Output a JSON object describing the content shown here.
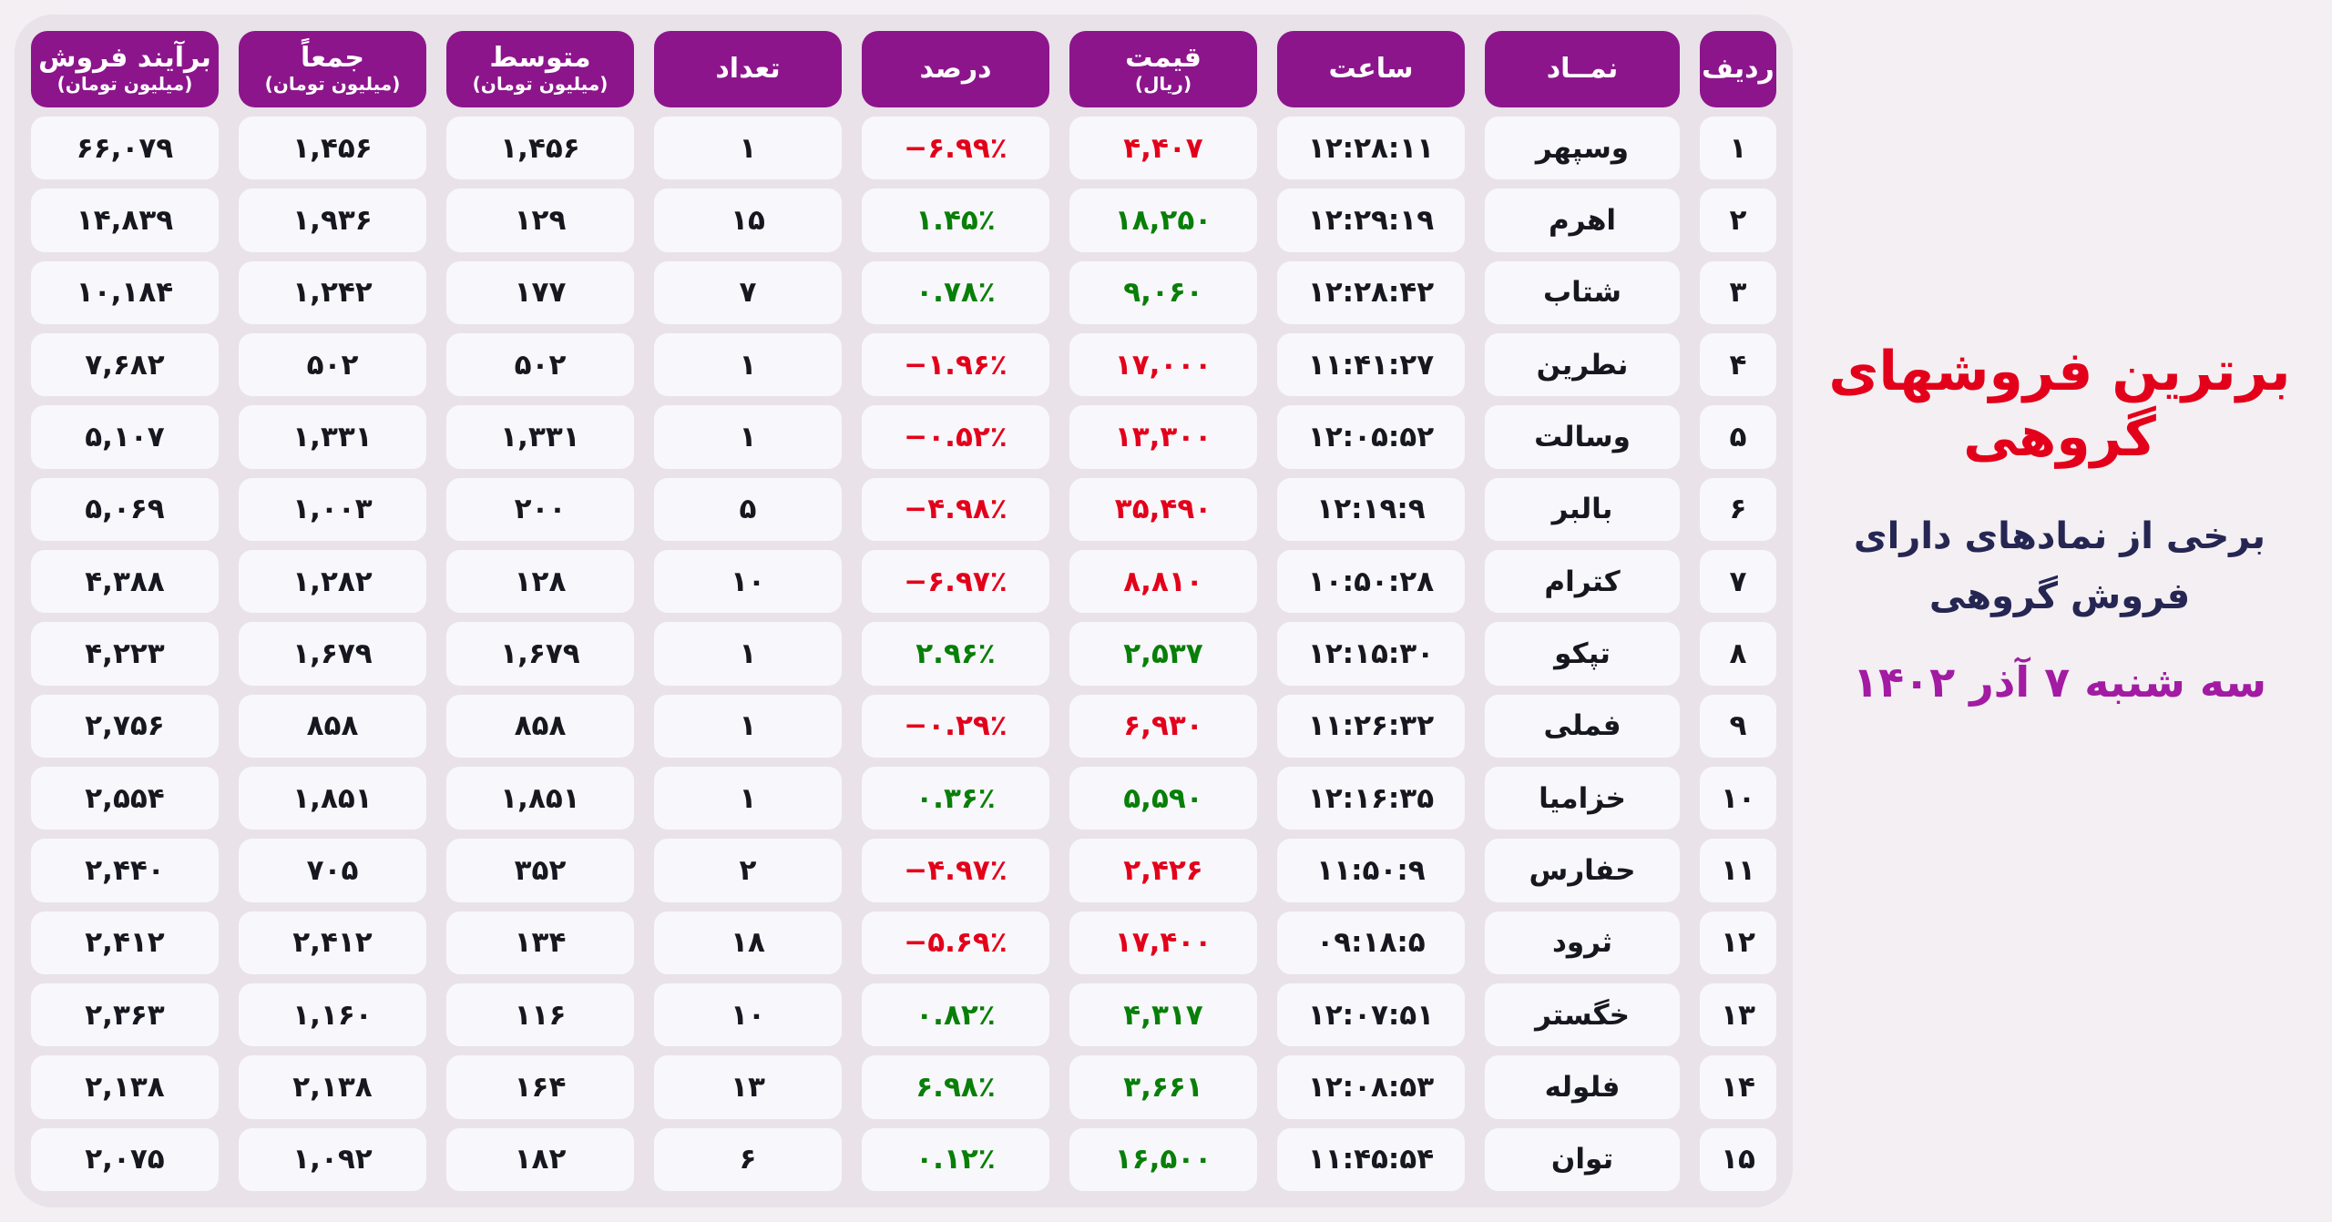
{
  "page": {
    "title": "برترین فروشهای گروهی",
    "subtitle_line1": "برخی از نمادهای دارای",
    "subtitle_line2": "فروش گروهی",
    "date_line": "سه شنبه ۷ آذر ۱۴۰۲"
  },
  "colors": {
    "page_bg": "#f3eff3",
    "board_bg": "#e9e2e9",
    "cell_bg": "#f8f7fc",
    "header_bg": "#8c158c",
    "ink": "#17171f",
    "up_green": "#087f08",
    "down_red": "#e3001a",
    "title_red": "#e3001a",
    "subtitle_navy": "#262653",
    "date_purple": "#a21ba2"
  },
  "table": {
    "headers": {
      "rank": "ردیف",
      "symbol": "نمــاد",
      "time": "ساعت",
      "price": "قیمت",
      "price_unit": "(ریال)",
      "percent": "درصد",
      "count": "تعداد",
      "avg": "متوسط",
      "avg_unit": "(میلیون تومان)",
      "sum": "جمعاً",
      "sum_unit": "(میلیون تومان)",
      "net": "برآیند فروش",
      "net_unit": "(میلیون تومان)"
    },
    "rows": [
      {
        "rank": "۱",
        "symbol": "وسپهر",
        "time": "۱۲:۲۸:۱۱",
        "price": "۴,۴۰۷",
        "percent": "−۶.۹۹٪",
        "trend": "down",
        "count": "۱",
        "avg": "۱,۴۵۶",
        "sum": "۱,۴۵۶",
        "net": "۶۶,۰۷۹"
      },
      {
        "rank": "۲",
        "symbol": "اهرم",
        "time": "۱۲:۲۹:۱۹",
        "price": "۱۸,۲۵۰",
        "percent": "۱.۴۵٪",
        "trend": "up",
        "count": "۱۵",
        "avg": "۱۲۹",
        "sum": "۱,۹۳۶",
        "net": "۱۴,۸۳۹"
      },
      {
        "rank": "۳",
        "symbol": "شتاب",
        "time": "۱۲:۲۸:۴۲",
        "price": "۹,۰۶۰",
        "percent": "۰.۷۸٪",
        "trend": "up",
        "count": "۷",
        "avg": "۱۷۷",
        "sum": "۱,۲۴۲",
        "net": "۱۰,۱۸۴"
      },
      {
        "rank": "۴",
        "symbol": "نطرین",
        "time": "۱۱:۴۱:۲۷",
        "price": "۱۷,۰۰۰",
        "percent": "−۱.۹۶٪",
        "trend": "down",
        "count": "۱",
        "avg": "۵۰۲",
        "sum": "۵۰۲",
        "net": "۷,۶۸۲"
      },
      {
        "rank": "۵",
        "symbol": "وسالت",
        "time": "۱۲:۰۵:۵۲",
        "price": "۱۳,۳۰۰",
        "percent": "−۰.۵۲٪",
        "trend": "down",
        "count": "۱",
        "avg": "۱,۳۳۱",
        "sum": "۱,۳۳۱",
        "net": "۵,۱۰۷"
      },
      {
        "rank": "۶",
        "symbol": "بالبر",
        "time": "۱۲:۱۹:۹",
        "price": "۳۵,۴۹۰",
        "percent": "−۴.۹۸٪",
        "trend": "down",
        "count": "۵",
        "avg": "۲۰۰",
        "sum": "۱,۰۰۳",
        "net": "۵,۰۶۹"
      },
      {
        "rank": "۷",
        "symbol": "کترام",
        "time": "۱۰:۵۰:۲۸",
        "price": "۸,۸۱۰",
        "percent": "−۶.۹۷٪",
        "trend": "down",
        "count": "۱۰",
        "avg": "۱۲۸",
        "sum": "۱,۲۸۲",
        "net": "۴,۳۸۸"
      },
      {
        "rank": "۸",
        "symbol": "تپکو",
        "time": "۱۲:۱۵:۳۰",
        "price": "۲,۵۳۷",
        "percent": "۲.۹۶٪",
        "trend": "up",
        "count": "۱",
        "avg": "۱,۶۷۹",
        "sum": "۱,۶۷۹",
        "net": "۴,۲۲۳"
      },
      {
        "rank": "۹",
        "symbol": "فملی",
        "time": "۱۱:۲۶:۳۲",
        "price": "۶,۹۳۰",
        "percent": "−۰.۲۹٪",
        "trend": "down",
        "count": "۱",
        "avg": "۸۵۸",
        "sum": "۸۵۸",
        "net": "۲,۷۵۶"
      },
      {
        "rank": "۱۰",
        "symbol": "خزامیا",
        "time": "۱۲:۱۶:۳۵",
        "price": "۵,۵۹۰",
        "percent": "۰.۳۶٪",
        "trend": "up",
        "count": "۱",
        "avg": "۱,۸۵۱",
        "sum": "۱,۸۵۱",
        "net": "۲,۵۵۴"
      },
      {
        "rank": "۱۱",
        "symbol": "حفارس",
        "time": "۱۱:۵۰:۹",
        "price": "۲,۴۲۶",
        "percent": "−۴.۹۷٪",
        "trend": "down",
        "count": "۲",
        "avg": "۳۵۲",
        "sum": "۷۰۵",
        "net": "۲,۴۴۰"
      },
      {
        "rank": "۱۲",
        "symbol": "ثرود",
        "time": "۰۹:۱۸:۵",
        "price": "۱۷,۴۰۰",
        "percent": "−۵.۶۹٪",
        "trend": "down",
        "count": "۱۸",
        "avg": "۱۳۴",
        "sum": "۲,۴۱۲",
        "net": "۲,۴۱۲"
      },
      {
        "rank": "۱۳",
        "symbol": "خگستر",
        "time": "۱۲:۰۷:۵۱",
        "price": "۴,۳۱۷",
        "percent": "۰.۸۲٪",
        "trend": "up",
        "count": "۱۰",
        "avg": "۱۱۶",
        "sum": "۱,۱۶۰",
        "net": "۲,۳۶۳"
      },
      {
        "rank": "۱۴",
        "symbol": "فلوله",
        "time": "۱۲:۰۸:۵۳",
        "price": "۳,۶۶۱",
        "percent": "۶.۹۸٪",
        "trend": "up",
        "count": "۱۳",
        "avg": "۱۶۴",
        "sum": "۲,۱۳۸",
        "net": "۲,۱۳۸"
      },
      {
        "rank": "۱۵",
        "symbol": "توان",
        "time": "۱۱:۴۵:۵۴",
        "price": "۱۶,۵۰۰",
        "percent": "۰.۱۲٪",
        "trend": "up",
        "count": "۶",
        "avg": "۱۸۲",
        "sum": "۱,۰۹۲",
        "net": "۲,۰۷۵"
      }
    ]
  },
  "chart_data": {
    "type": "table",
    "title": "برترین فروشهای گروهی",
    "subtitle": "برخی از نمادهای دارای فروش گروهی — سه شنبه ۷ آذر ۱۴۰۲",
    "columns": [
      "ردیف",
      "نمــاد",
      "ساعت",
      "قیمت (ریال)",
      "درصد",
      "تعداد",
      "متوسط (میلیون تومان)",
      "جمعاً (میلیون تومان)",
      "برآیند فروش (میلیون تومان)"
    ],
    "rows": [
      [
        1,
        "وسپهر",
        "12:28:11",
        4407,
        -6.99,
        1,
        1456,
        1456,
        66079
      ],
      [
        2,
        "اهرم",
        "12:29:19",
        18250,
        1.45,
        15,
        129,
        1936,
        14839
      ],
      [
        3,
        "شتاب",
        "12:28:42",
        9060,
        0.78,
        7,
        177,
        1242,
        10184
      ],
      [
        4,
        "نطرین",
        "11:41:27",
        17000,
        -1.96,
        1,
        502,
        502,
        7682
      ],
      [
        5,
        "وسالت",
        "12:05:52",
        13300,
        -0.52,
        1,
        1331,
        1331,
        5107
      ],
      [
        6,
        "بالبر",
        "12:19:9",
        35490,
        -4.98,
        5,
        200,
        1003,
        5069
      ],
      [
        7,
        "کترام",
        "10:50:28",
        8810,
        -6.97,
        10,
        128,
        1282,
        4388
      ],
      [
        8,
        "تپکو",
        "12:15:30",
        2537,
        2.96,
        1,
        1679,
        1679,
        4223
      ],
      [
        9,
        "فملی",
        "11:26:32",
        6930,
        -0.29,
        1,
        858,
        858,
        2756
      ],
      [
        10,
        "خزامیا",
        "12:16:35",
        5590,
        0.36,
        1,
        1851,
        1851,
        2554
      ],
      [
        11,
        "حفارس",
        "11:50:9",
        2426,
        -4.97,
        2,
        352,
        705,
        2440
      ],
      [
        12,
        "ثرود",
        "09:18:5",
        17400,
        -5.69,
        18,
        134,
        2412,
        2412
      ],
      [
        13,
        "خگستر",
        "12:07:51",
        4317,
        0.82,
        10,
        116,
        1160,
        2363
      ],
      [
        14,
        "فلوله",
        "12:08:53",
        3661,
        6.98,
        13,
        164,
        2138,
        2138
      ],
      [
        15,
        "توان",
        "11:45:54",
        16500,
        0.12,
        6,
        182,
        1092,
        2075
      ]
    ],
    "legend_note": "green = positive change, red = negative change",
    "colors": {
      "positive": "#087f08",
      "negative": "#e3001a",
      "header": "#8c158c"
    }
  }
}
